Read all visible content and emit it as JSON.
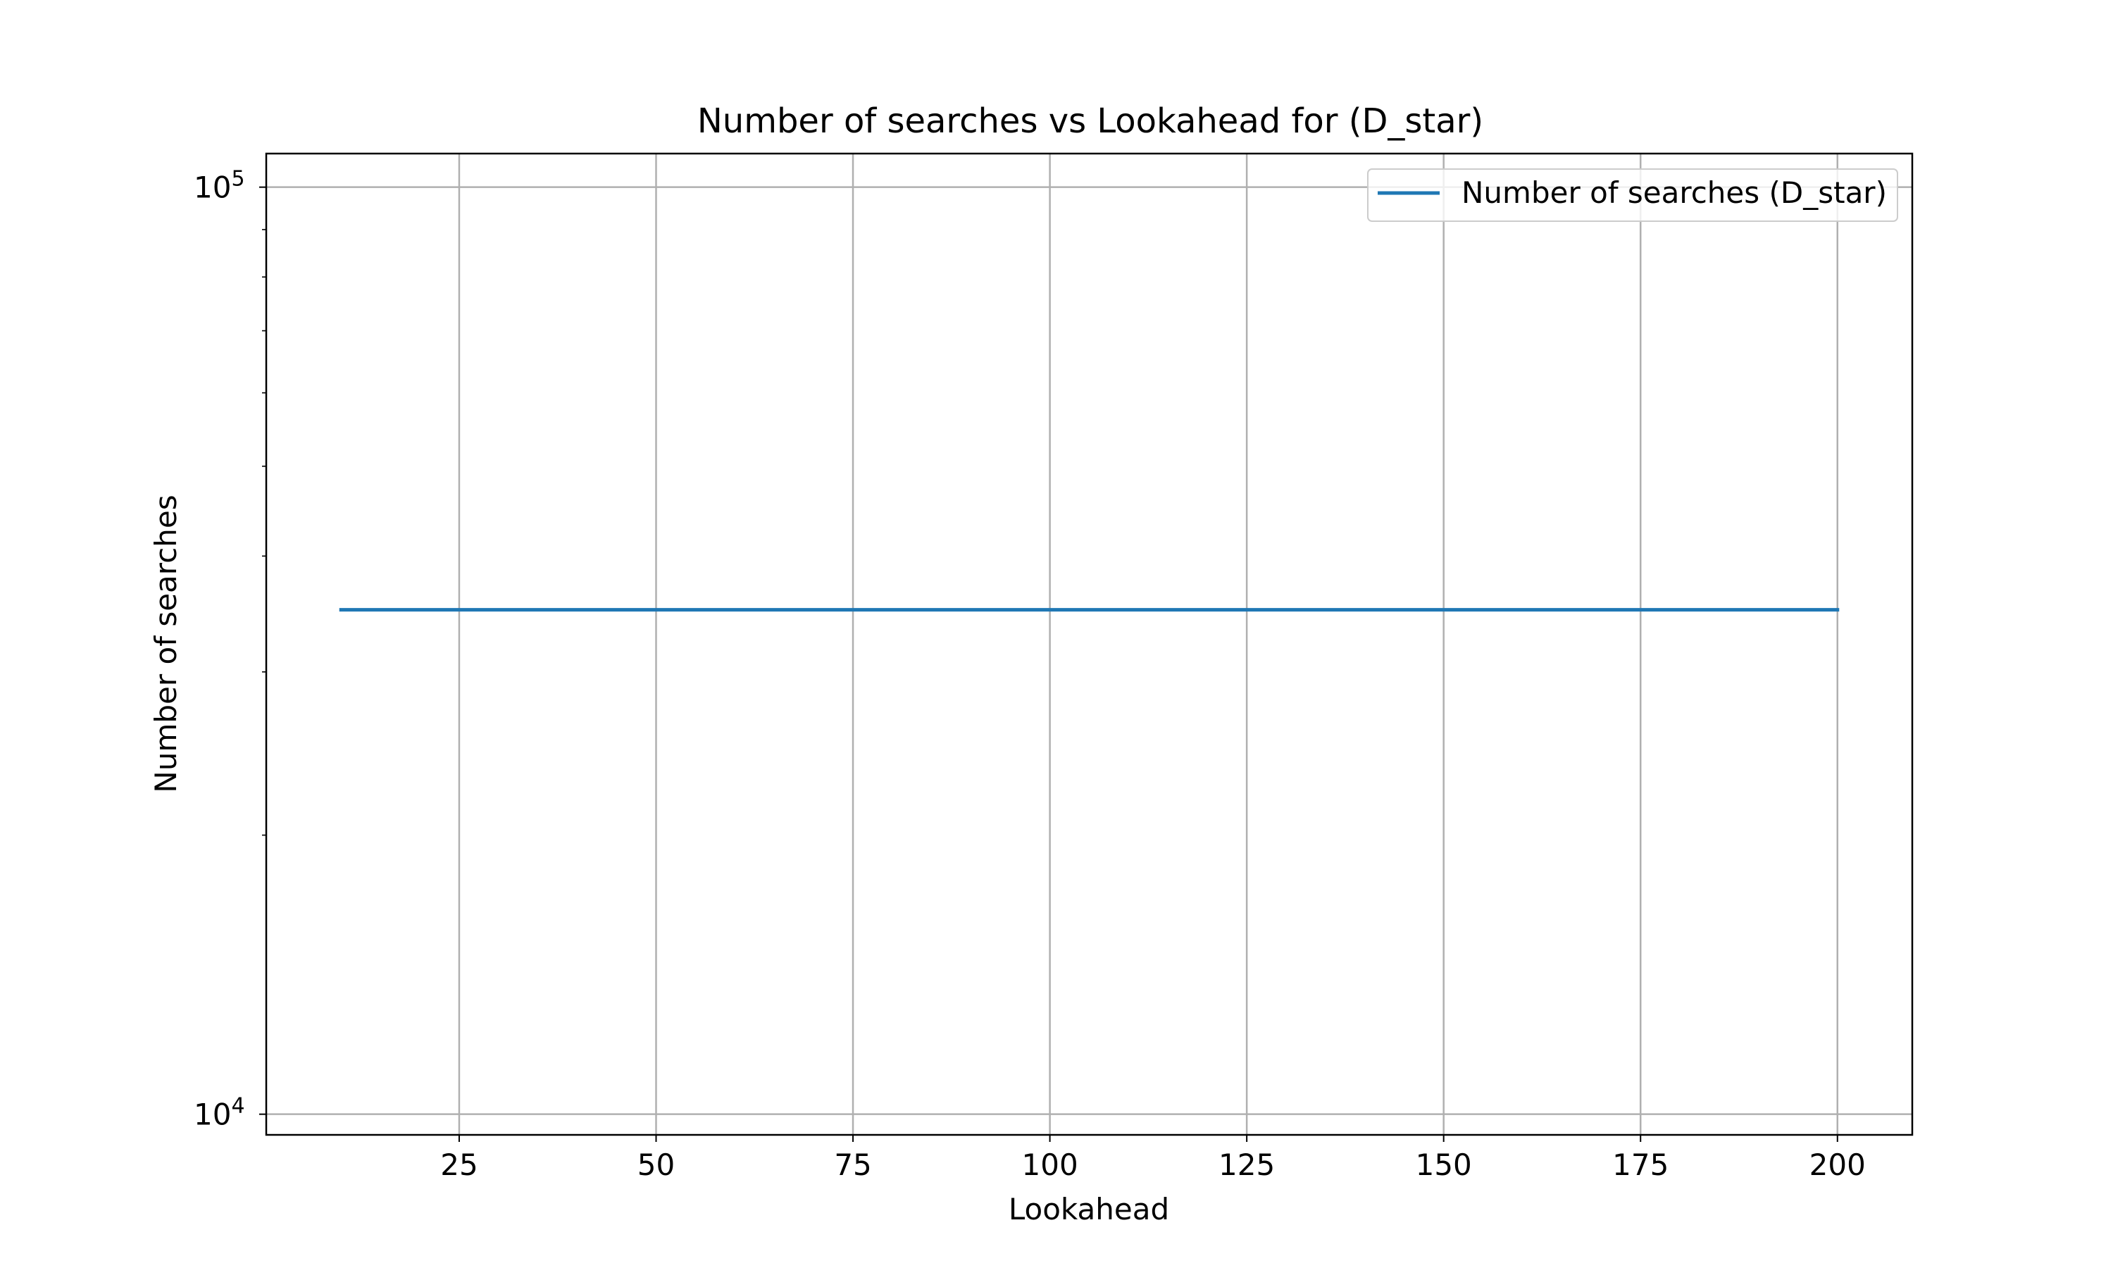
{
  "chart_data": {
    "type": "line",
    "title": "Number of searches vs Lookahead for  (D_star)",
    "xlabel": "Lookahead",
    "ylabel": "Number of searches",
    "xlim": [
      0.5,
      209.5
    ],
    "ylim": [
      9500,
      108700
    ],
    "yscale": "log",
    "grid": true,
    "legend_position": "top-right",
    "x_ticks": [
      25,
      50,
      75,
      100,
      125,
      150,
      175,
      200
    ],
    "y_major_ticks": [
      {
        "value": 10000,
        "base": "10",
        "exponent": "4"
      },
      {
        "value": 100000,
        "base": "10",
        "exponent": "5"
      }
    ],
    "y_minor_ticks": [
      20000,
      30000,
      40000,
      50000,
      60000,
      70000,
      80000,
      90000
    ],
    "series": [
      {
        "name": "Number of searches (D_star)",
        "color": "#1f77b4",
        "x": [
          10,
          200
        ],
        "y": [
          35000,
          35000
        ]
      }
    ]
  }
}
